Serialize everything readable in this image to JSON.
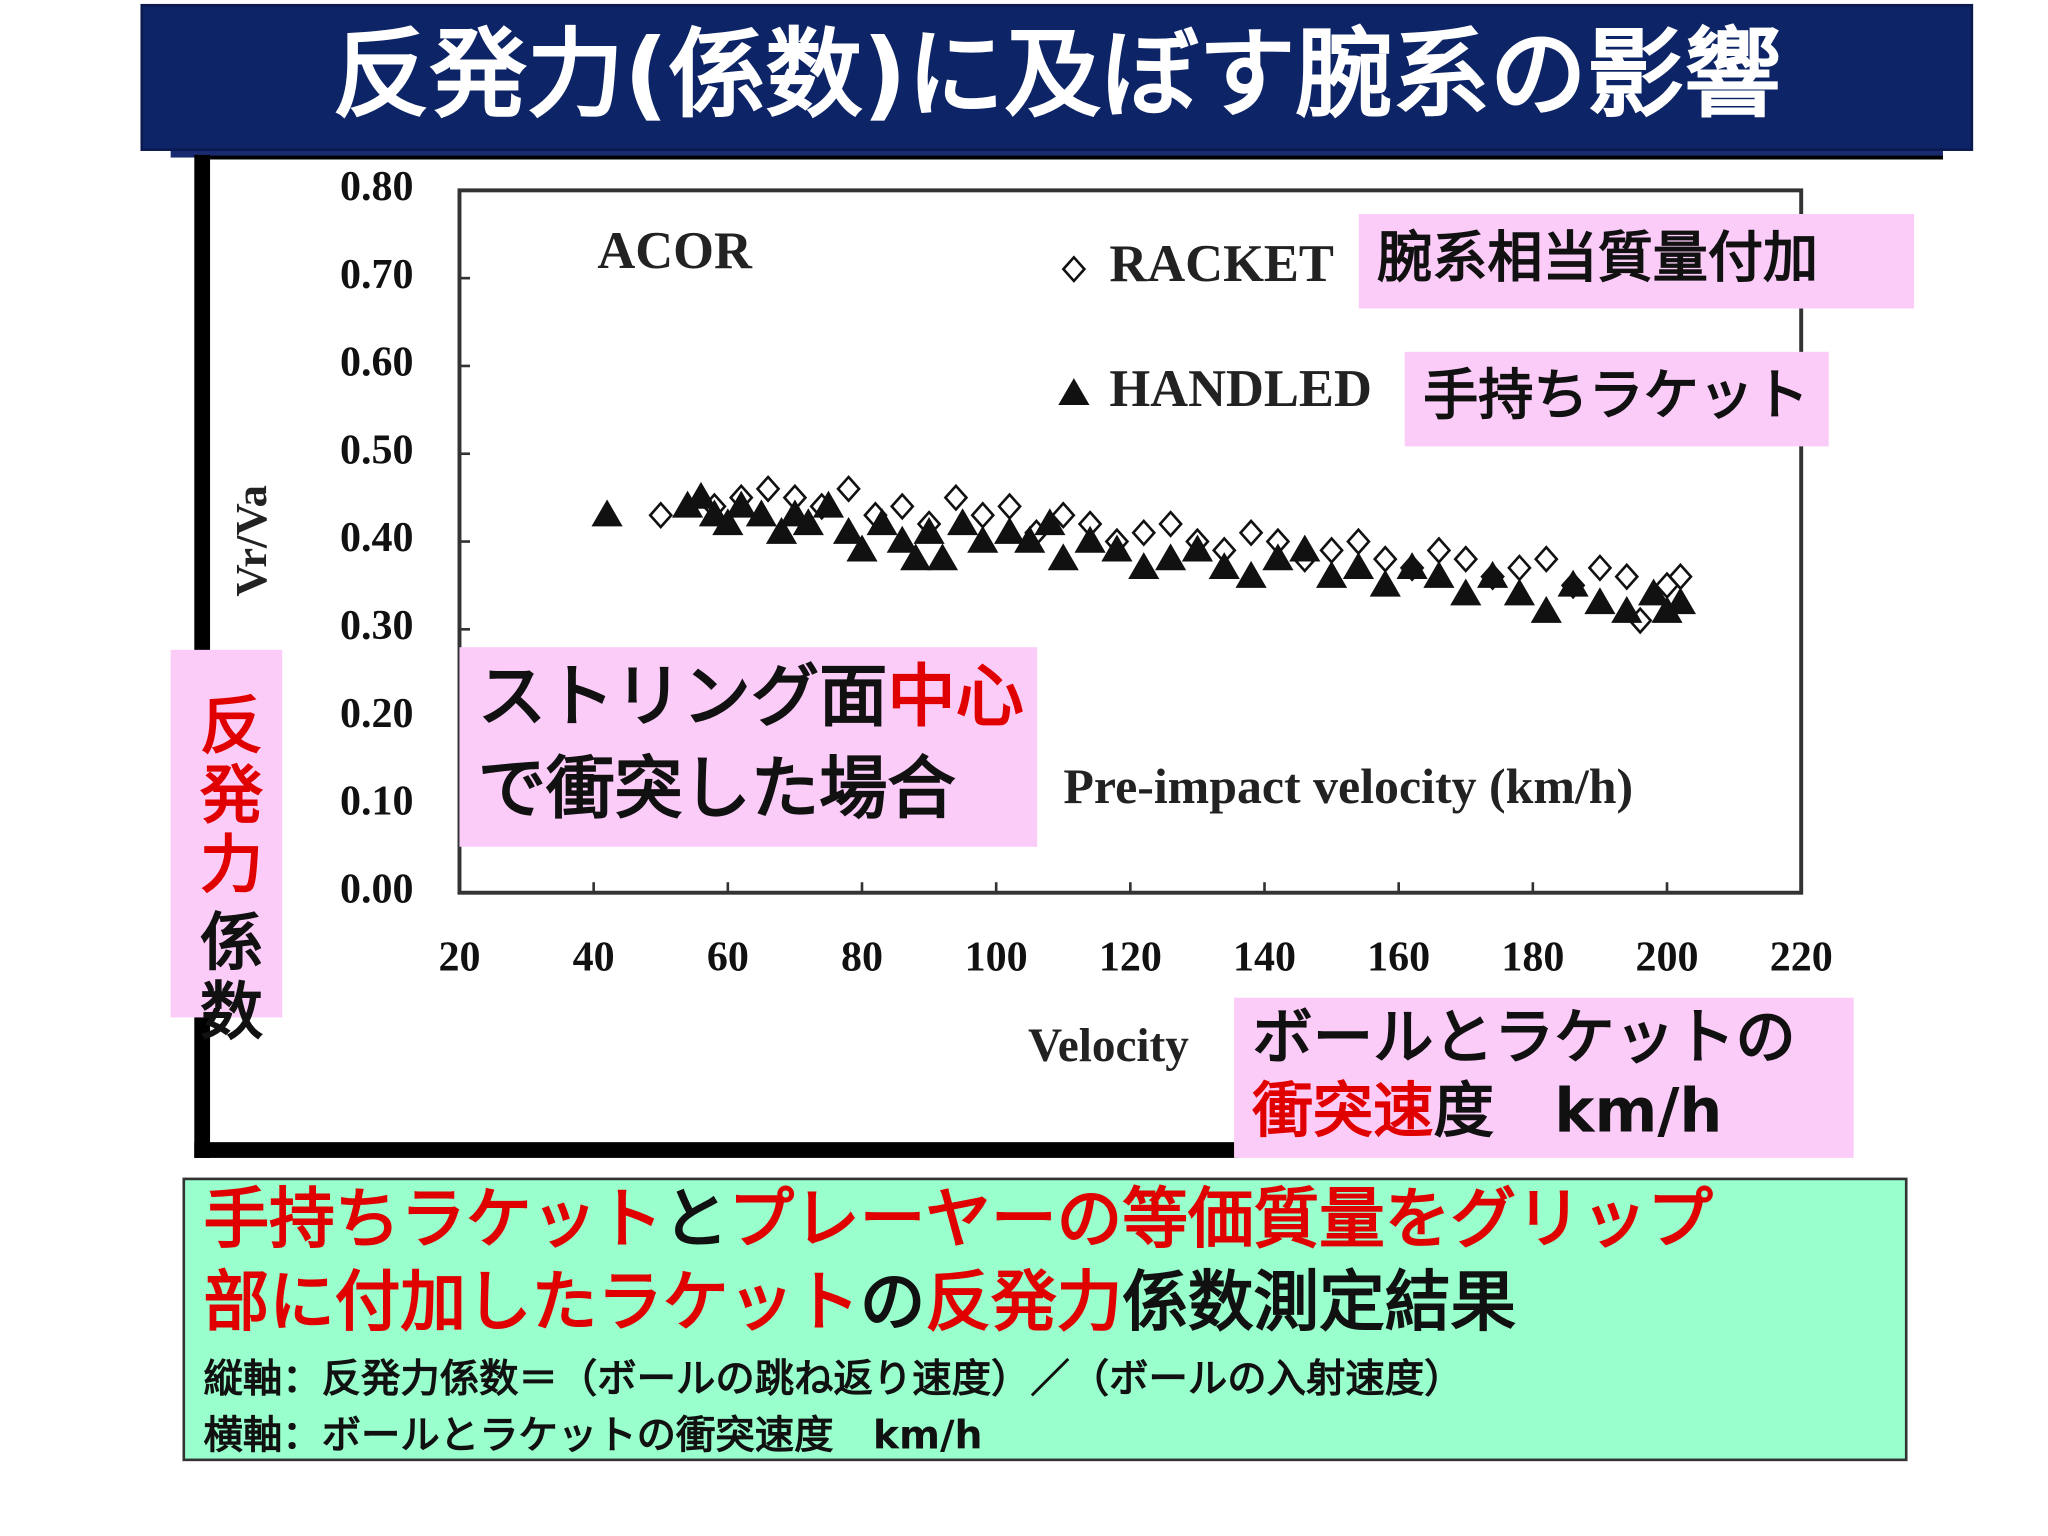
{
  "slide": {
    "title": "反発力(係数)に及ぼす腕系の影響",
    "callouts": [
      {
        "lines": [
          [
            {
              "text": "腕系相当質量付加",
              "color": "#111111"
            }
          ]
        ]
      },
      {
        "lines": [
          [
            {
              "text": "手持ちラケット",
              "color": "#111111"
            }
          ]
        ]
      },
      {
        "lines": [
          [
            {
              "text": "ストリング面",
              "color": "#111111"
            },
            {
              "text": "中心",
              "color": "#e00000"
            }
          ],
          [
            {
              "text": "で衝突した場合",
              "color": "#111111"
            }
          ]
        ]
      },
      {
        "writing": "vertical",
        "lines": [
          [
            {
              "text": "反発力",
              "color": "#e00000"
            },
            {
              "text": "係数",
              "color": "#111111"
            }
          ]
        ]
      },
      {
        "lines": [
          [
            {
              "text": "ボールとラケットの",
              "color": "#111111"
            }
          ],
          [
            {
              "text": "衝突速",
              "color": "#e00000"
            },
            {
              "text": "度　km/h",
              "color": "#111111"
            }
          ]
        ]
      }
    ],
    "footer": [
      [
        {
          "text": "手持ちラケット",
          "color": "#e00000"
        },
        {
          "text": "と",
          "color": "#111111"
        },
        {
          "text": "プレーヤーの等価質量をグリップ",
          "color": "#e00000"
        }
      ],
      [
        {
          "text": "部に付加したラケット",
          "color": "#e00000"
        },
        {
          "text": "の",
          "color": "#111111"
        },
        {
          "text": "反発力",
          "color": "#e00000"
        },
        {
          "text": "係数測定結果",
          "color": "#111111"
        }
      ],
      [
        {
          "text": "縦軸：反発力係数＝（ボールの跳ね返り速度）／（ボールの入射速度）",
          "color": "#111111"
        }
      ],
      [
        {
          "text": "横軸：ボールとラケットの衝突速度　km/h",
          "color": "#111111"
        }
      ]
    ]
  },
  "chart_data": {
    "type": "scatter",
    "ylabel": "Vr/Va",
    "xlabel": "Velocity",
    "annotations": [
      "ACOR",
      "Pre-impact velocity (km/h)"
    ],
    "xlim": [
      20,
      220
    ],
    "xticks": [
      20,
      40,
      60,
      80,
      100,
      120,
      140,
      160,
      180,
      200,
      220
    ],
    "ylim": [
      0,
      0.8
    ],
    "yticks": [
      {
        "value": 0.8,
        "label": "0.80"
      },
      {
        "value": 0.7,
        "label": "0.70"
      },
      {
        "value": 0.6,
        "label": "0.60"
      },
      {
        "value": 0.5,
        "label": "0.50"
      },
      {
        "value": 0.4,
        "label": "0.40"
      },
      {
        "value": 0.3,
        "label": "0.30"
      },
      {
        "value": 0.2,
        "label": "0.20"
      },
      {
        "value": 0.1,
        "label": "0.10"
      },
      {
        "value": 0,
        "label": "0.00"
      }
    ],
    "grid": false,
    "series": [
      {
        "name": "RACKET",
        "marker": "diamond",
        "color": "#111111",
        "x": [
          50,
          58,
          62,
          66,
          70,
          74,
          78,
          82,
          86,
          90,
          94,
          98,
          102,
          106,
          110,
          114,
          118,
          122,
          126,
          130,
          134,
          138,
          142,
          146,
          150,
          154,
          158,
          162,
          166,
          170,
          174,
          178,
          182,
          186,
          190,
          194,
          196,
          200,
          202
        ],
        "values": [
          0.43,
          0.44,
          0.45,
          0.46,
          0.45,
          0.44,
          0.46,
          0.43,
          0.44,
          0.42,
          0.45,
          0.43,
          0.44,
          0.41,
          0.43,
          0.42,
          0.4,
          0.41,
          0.42,
          0.4,
          0.39,
          0.41,
          0.4,
          0.38,
          0.39,
          0.4,
          0.38,
          0.37,
          0.39,
          0.38,
          0.36,
          0.37,
          0.38,
          0.35,
          0.37,
          0.36,
          0.31,
          0.35,
          0.36
        ]
      },
      {
        "name": "HANDLED",
        "marker": "triangle",
        "color": "#111111",
        "x": [
          42,
          54,
          56,
          58,
          60,
          62,
          65,
          68,
          70,
          72,
          75,
          78,
          80,
          83,
          86,
          88,
          90,
          92,
          95,
          98,
          102,
          105,
          108,
          110,
          114,
          118,
          122,
          126,
          130,
          134,
          138,
          142,
          146,
          150,
          154,
          158,
          162,
          166,
          170,
          174,
          178,
          182,
          186,
          190,
          194,
          198,
          200,
          202
        ],
        "values": [
          0.43,
          0.44,
          0.45,
          0.43,
          0.42,
          0.44,
          0.43,
          0.41,
          0.43,
          0.42,
          0.44,
          0.41,
          0.39,
          0.42,
          0.4,
          0.38,
          0.41,
          0.38,
          0.42,
          0.4,
          0.41,
          0.4,
          0.42,
          0.38,
          0.4,
          0.39,
          0.37,
          0.38,
          0.39,
          0.37,
          0.36,
          0.38,
          0.39,
          0.36,
          0.37,
          0.35,
          0.37,
          0.36,
          0.34,
          0.36,
          0.34,
          0.32,
          0.35,
          0.33,
          0.32,
          0.34,
          0.32,
          0.33
        ]
      }
    ]
  }
}
